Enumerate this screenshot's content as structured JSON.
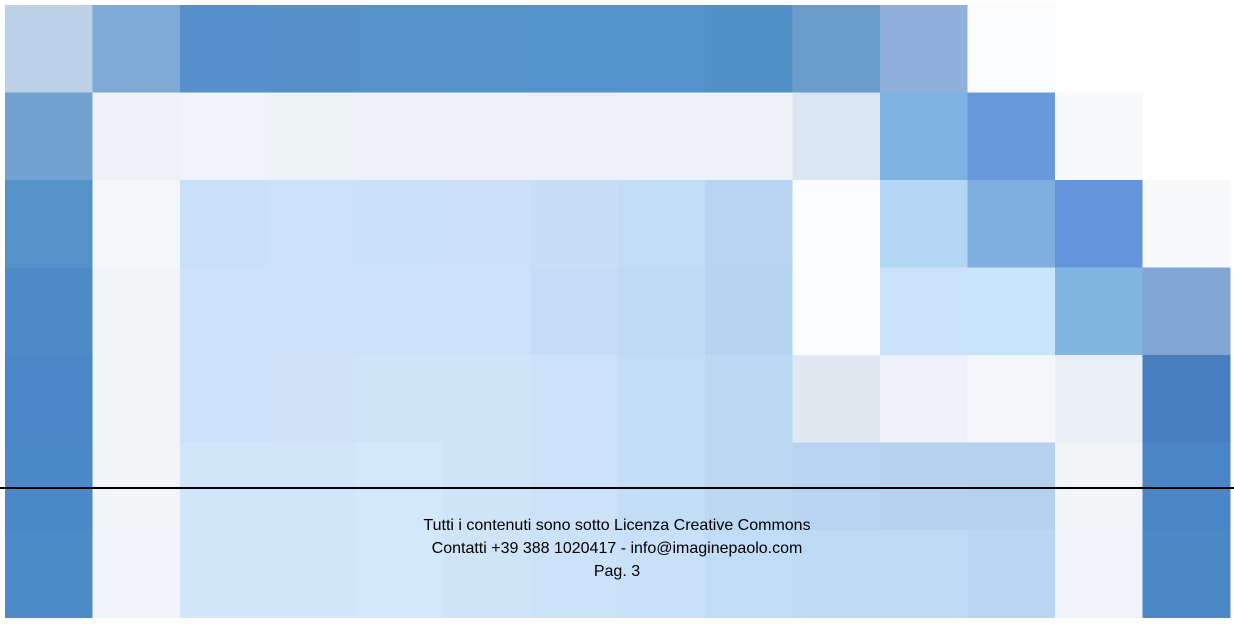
{
  "footer": {
    "license": "Tutti i contenuti sono sotto Licenza Creative Commons",
    "contacts": "Contatti +39 388 1020417 - info@imaginepaolo.com",
    "page": "Pag. 3"
  }
}
